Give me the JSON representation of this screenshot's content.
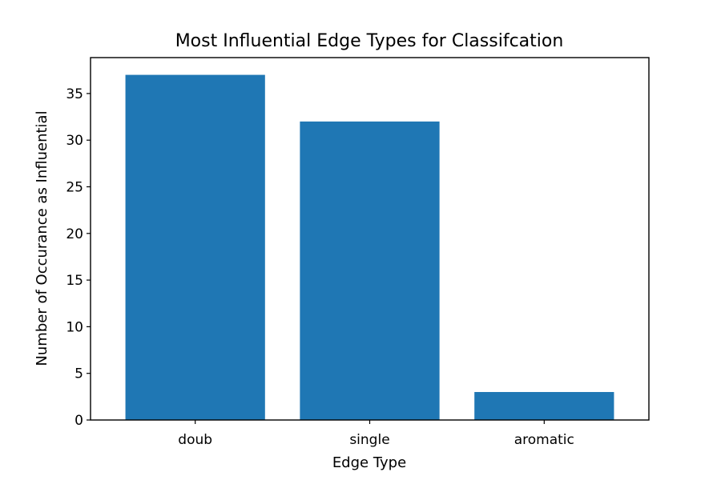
{
  "chart_data": {
    "type": "bar",
    "title": "Most Influential Edge Types for Classifcation",
    "xlabel": "Edge Type",
    "ylabel": "Number of Occurance as Influential",
    "categories": [
      "doub",
      "single",
      "aromatic"
    ],
    "values": [
      37,
      32,
      3
    ],
    "ylim": [
      0,
      38.85
    ],
    "yticks": [
      0,
      5,
      10,
      15,
      20,
      25,
      30,
      35
    ],
    "grid": false,
    "bar_color": "#1f77b4",
    "axis_color": "#000000"
  }
}
